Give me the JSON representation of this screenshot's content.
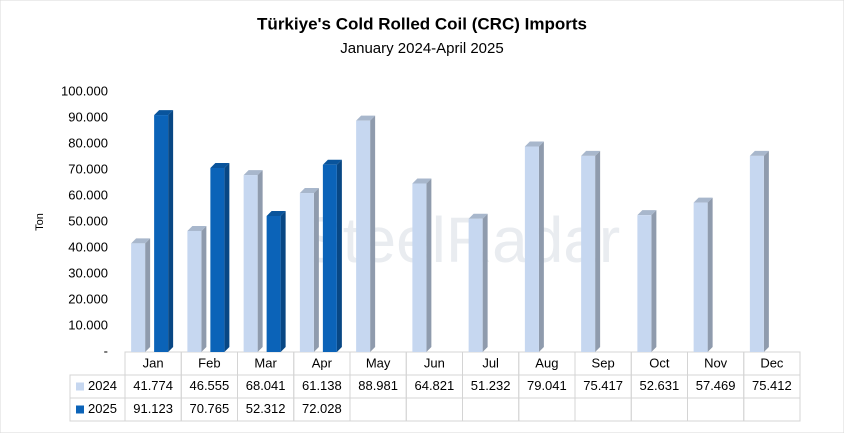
{
  "chart_data": {
    "type": "bar3d",
    "title": "Türkiye's Cold Rolled Coil (CRC) Imports",
    "subtitle": "January 2024-April 2025",
    "y_label": "Ton",
    "watermark": "SteelRadar",
    "categories": [
      "Jan",
      "Feb",
      "Mar",
      "Apr",
      "May",
      "Jun",
      "Jul",
      "Aug",
      "Sep",
      "Oct",
      "Nov",
      "Dec"
    ],
    "series": [
      {
        "name": "2024",
        "color": "#c6d7f0",
        "values": [
          41774,
          46555,
          68041,
          61138,
          88981,
          64821,
          51232,
          79041,
          75417,
          52631,
          57469,
          75412
        ],
        "value_labels": [
          "41.774",
          "46.555",
          "68.041",
          "61.138",
          "88.981",
          "64.821",
          "51.232",
          "79.041",
          "75.417",
          "52.631",
          "57.469",
          "75.412"
        ]
      },
      {
        "name": "2025",
        "color": "#0b63b8",
        "values": [
          91123,
          70765,
          52312,
          72028,
          null,
          null,
          null,
          null,
          null,
          null,
          null,
          null
        ],
        "value_labels": [
          "91.123",
          "70.765",
          "52.312",
          "72.028",
          null,
          null,
          null,
          null,
          null,
          null,
          null,
          null
        ]
      }
    ],
    "ylim": [
      0,
      100000
    ],
    "yticks": [
      {
        "value": 0,
        "label": "-"
      },
      {
        "value": 10000,
        "label": "10.000"
      },
      {
        "value": 20000,
        "label": "20.000"
      },
      {
        "value": 30000,
        "label": "30.000"
      },
      {
        "value": 40000,
        "label": "40.000"
      },
      {
        "value": 50000,
        "label": "50.000"
      },
      {
        "value": 60000,
        "label": "60.000"
      },
      {
        "value": 70000,
        "label": "70.000"
      },
      {
        "value": 80000,
        "label": "80.000"
      },
      {
        "value": 90000,
        "label": "90.000"
      },
      {
        "value": 100000,
        "label": "100.000"
      }
    ],
    "grid": false
  }
}
